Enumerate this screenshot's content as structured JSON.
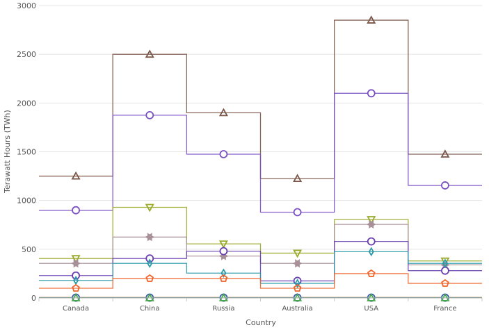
{
  "chart_data": {
    "type": "line",
    "subtype": "step",
    "title": "",
    "xlabel": "Country",
    "ylabel": "Terawatt Hours (TWh)",
    "ylim": [
      0,
      3000
    ],
    "yticks": [
      0,
      500,
      1000,
      1500,
      2000,
      2500,
      3000
    ],
    "grid": true,
    "legend": "none",
    "categories": [
      "Canada",
      "China",
      "Russia",
      "Australia",
      "USA",
      "France"
    ],
    "series": [
      {
        "color": "#7b5548",
        "marker": "triangle-up",
        "values": [
          1250,
          2500,
          1900,
          1225,
          2850,
          1475
        ]
      },
      {
        "color": "#7b4fc4",
        "marker": "circle",
        "values": [
          900,
          1875,
          1475,
          880,
          2100,
          1155
        ]
      },
      {
        "color": "#9aaa2a",
        "marker": "triangle-down",
        "values": [
          405,
          930,
          555,
          460,
          805,
          380
        ]
      },
      {
        "color": "#a89098",
        "marker": "star",
        "values": [
          355,
          625,
          430,
          355,
          755,
          340
        ]
      },
      {
        "color": "#6a3fb0",
        "marker": "circle",
        "values": [
          230,
          405,
          480,
          175,
          580,
          280
        ]
      },
      {
        "color": "#2a9aa8",
        "marker": "diamond",
        "values": [
          180,
          355,
          255,
          150,
          475,
          355
        ]
      },
      {
        "color": "#f0642a",
        "marker": "pentagon",
        "values": [
          100,
          200,
          200,
          100,
          250,
          150
        ]
      },
      {
        "color": "#f08a1a",
        "marker": "square",
        "values": [
          5,
          5,
          5,
          5,
          5,
          5
        ]
      },
      {
        "color": "#3a5ab0",
        "marker": "circle",
        "values": [
          3,
          3,
          3,
          3,
          3,
          3
        ]
      },
      {
        "color": "#4aa84a",
        "marker": "triangle-up",
        "values": [
          1,
          1,
          1,
          1,
          1,
          1
        ]
      }
    ]
  }
}
